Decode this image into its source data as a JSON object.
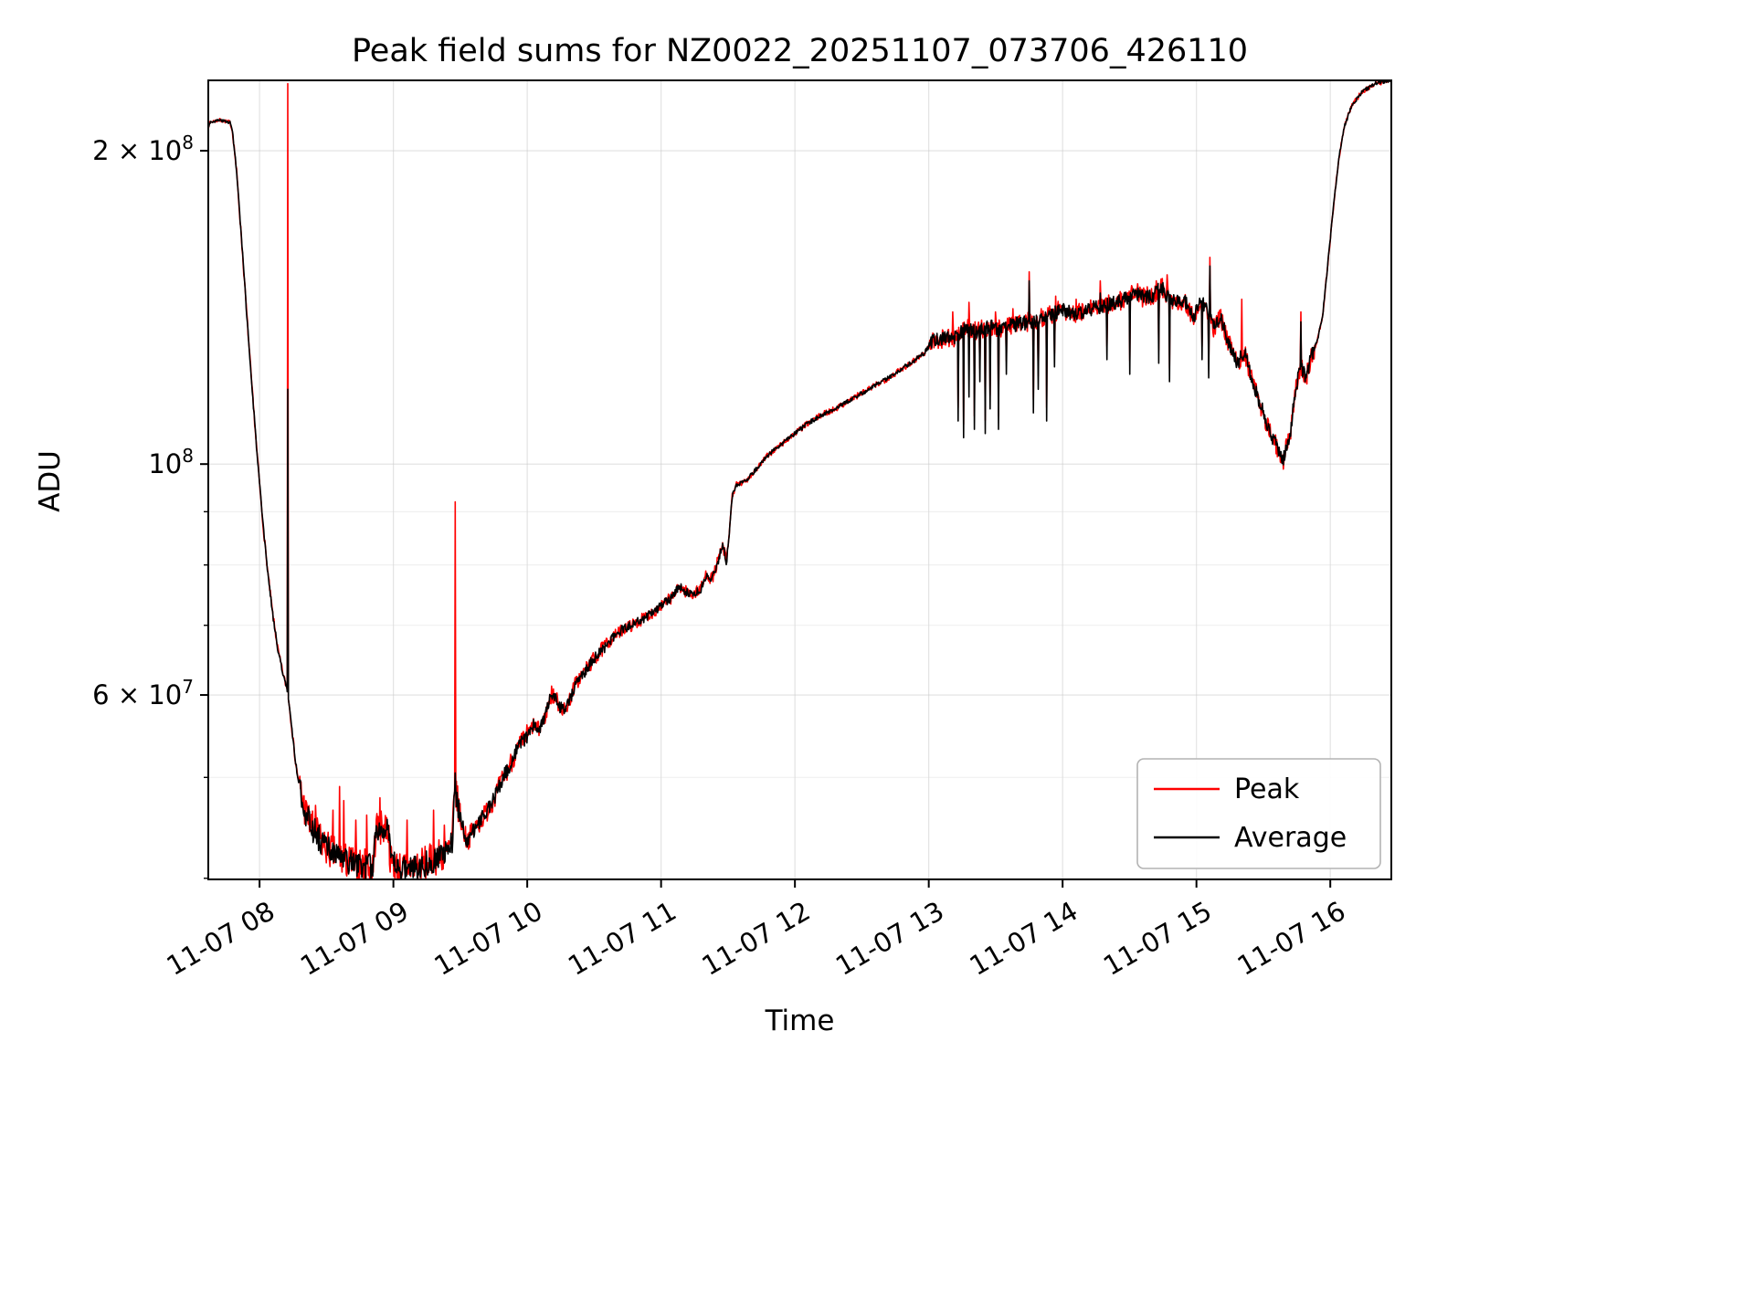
{
  "chart_data": {
    "type": "line",
    "title": "Peak field sums for NZ0022_20251107_073706_426110",
    "xlabel": "Time",
    "ylabel": "ADU",
    "yscale": "log",
    "grid": true,
    "x_range_hours": [
      7.617,
      16.456
    ],
    "ylim": [
      39900000,
      233700000
    ],
    "x_ticks": [
      {
        "hour": 8,
        "label": "11-07 08"
      },
      {
        "hour": 9,
        "label": "11-07 09"
      },
      {
        "hour": 10,
        "label": "11-07 10"
      },
      {
        "hour": 11,
        "label": "11-07 11"
      },
      {
        "hour": 12,
        "label": "11-07 12"
      },
      {
        "hour": 13,
        "label": "11-07 13"
      },
      {
        "hour": 14,
        "label": "11-07 14"
      },
      {
        "hour": 15,
        "label": "11-07 15"
      },
      {
        "hour": 16,
        "label": "11-07 16"
      }
    ],
    "y_ticks": [
      {
        "value": 200000000.0,
        "label": "2 × 10^8"
      },
      {
        "value": 100000000.0,
        "label": "10^8"
      },
      {
        "value": 60000000.0,
        "label": "6 × 10^7"
      }
    ],
    "y_minor_grid": [
      40000000.0,
      50000000.0,
      70000000.0,
      80000000.0,
      90000000.0
    ],
    "legend": {
      "position": "lower right",
      "entries": [
        {
          "label": "Peak",
          "color": "#ff0000"
        },
        {
          "label": "Average",
          "color": "#000000"
        }
      ]
    },
    "backbone": [
      [
        7.617,
        211000000.0
      ],
      [
        7.63,
        213000000.0
      ],
      [
        7.66,
        213500000.0
      ],
      [
        7.7,
        214000000.0
      ],
      [
        7.74,
        213500000.0
      ],
      [
        7.78,
        213000000.0
      ],
      [
        7.8,
        208000000.0
      ],
      [
        7.83,
        190000000.0
      ],
      [
        7.86,
        168000000.0
      ],
      [
        7.9,
        142000000.0
      ],
      [
        7.94,
        120000000.0
      ],
      [
        7.98,
        103000000.0
      ],
      [
        8.02,
        89000000.0
      ],
      [
        8.06,
        79000000.0
      ],
      [
        8.1,
        71500000.0
      ],
      [
        8.14,
        66000000.0
      ],
      [
        8.18,
        62500000.0
      ],
      [
        8.21,
        60500000.0
      ],
      [
        8.24,
        56000000.0
      ],
      [
        8.27,
        51500000.0
      ],
      [
        8.3,
        49000000.0
      ],
      [
        8.34,
        46500000.0
      ],
      [
        8.38,
        45000000.0
      ],
      [
        8.44,
        43800000.0
      ],
      [
        8.5,
        42800000.0
      ],
      [
        8.58,
        42000000.0
      ],
      [
        8.66,
        41500000.0
      ],
      [
        8.74,
        41200000.0
      ],
      [
        8.82,
        41000000.0
      ],
      [
        8.85,
        41200000.0
      ],
      [
        8.87,
        44800000.0
      ],
      [
        8.9,
        44500000.0
      ],
      [
        8.93,
        45000000.0
      ],
      [
        8.96,
        44800000.0
      ],
      [
        8.98,
        41500000.0
      ],
      [
        9.05,
        40800000.0
      ],
      [
        9.12,
        41000000.0
      ],
      [
        9.2,
        41200000.0
      ],
      [
        9.28,
        41500000.0
      ],
      [
        9.32,
        42000000.0
      ],
      [
        9.4,
        42200000.0
      ],
      [
        9.44,
        43500000.0
      ],
      [
        9.455,
        48000000.0
      ],
      [
        9.48,
        47500000.0
      ],
      [
        9.51,
        45000000.0
      ],
      [
        9.55,
        43500000.0
      ],
      [
        9.6,
        44500000.0
      ],
      [
        9.68,
        46000000.0
      ],
      [
        9.76,
        48000000.0
      ],
      [
        9.84,
        50500000.0
      ],
      [
        9.92,
        53000000.0
      ],
      [
        10.0,
        55000000.0
      ],
      [
        10.05,
        56200000.0
      ],
      [
        10.09,
        55500000.0
      ],
      [
        10.13,
        57000000.0
      ],
      [
        10.17,
        59500000.0
      ],
      [
        10.21,
        60000000.0
      ],
      [
        10.24,
        58500000.0
      ],
      [
        10.28,
        58000000.0
      ],
      [
        10.32,
        59500000.0
      ],
      [
        10.36,
        61500000.0
      ],
      [
        10.42,
        63000000.0
      ],
      [
        10.5,
        65000000.0
      ],
      [
        10.58,
        66800000.0
      ],
      [
        10.66,
        68500000.0
      ],
      [
        10.72,
        69500000.0
      ],
      [
        10.8,
        70200000.0
      ],
      [
        10.9,
        71500000.0
      ],
      [
        11.0,
        73000000.0
      ],
      [
        11.08,
        74500000.0
      ],
      [
        11.14,
        76200000.0
      ],
      [
        11.18,
        75500000.0
      ],
      [
        11.24,
        75000000.0
      ],
      [
        11.3,
        76000000.0
      ],
      [
        11.34,
        78500000.0
      ],
      [
        11.38,
        77500000.0
      ],
      [
        11.43,
        81000000.0
      ],
      [
        11.46,
        83500000.0
      ],
      [
        11.49,
        80500000.0
      ],
      [
        11.51,
        86000000.0
      ],
      [
        11.53,
        93000000.0
      ],
      [
        11.56,
        95500000.0
      ],
      [
        11.62,
        96000000.0
      ],
      [
        11.7,
        98500000.0
      ],
      [
        11.8,
        102000000.0
      ],
      [
        11.9,
        104500000.0
      ],
      [
        12.0,
        107000000.0
      ],
      [
        12.1,
        109500000.0
      ],
      [
        12.2,
        111500000.0
      ],
      [
        12.3,
        113000000.0
      ],
      [
        12.4,
        115000000.0
      ],
      [
        12.5,
        117000000.0
      ],
      [
        12.6,
        119000000.0
      ],
      [
        12.7,
        121000000.0
      ],
      [
        12.8,
        123500000.0
      ],
      [
        12.9,
        126000000.0
      ],
      [
        12.97,
        128000000.0
      ],
      [
        13.02,
        131000000.0
      ],
      [
        13.1,
        132000000.0
      ],
      [
        13.2,
        132500000.0
      ],
      [
        13.28,
        135000000.0
      ],
      [
        13.36,
        134000000.0
      ],
      [
        13.44,
        135500000.0
      ],
      [
        13.52,
        135000000.0
      ],
      [
        13.6,
        136000000.0
      ],
      [
        13.7,
        136500000.0
      ],
      [
        13.8,
        137500000.0
      ],
      [
        13.9,
        139000000.0
      ],
      [
        14.0,
        141000000.0
      ],
      [
        14.08,
        139500000.0
      ],
      [
        14.16,
        140000000.0
      ],
      [
        14.24,
        141500000.0
      ],
      [
        14.32,
        142000000.0
      ],
      [
        14.4,
        143000000.0
      ],
      [
        14.48,
        144500000.0
      ],
      [
        14.54,
        146000000.0
      ],
      [
        14.6,
        144500000.0
      ],
      [
        14.68,
        145500000.0
      ],
      [
        14.74,
        148000000.0
      ],
      [
        14.8,
        144000000.0
      ],
      [
        14.86,
        143500000.0
      ],
      [
        14.92,
        143000000.0
      ],
      [
        14.98,
        138000000.0
      ],
      [
        15.03,
        144000000.0
      ],
      [
        15.08,
        140000000.0
      ],
      [
        15.13,
        135000000.0
      ],
      [
        15.18,
        138000000.0
      ],
      [
        15.24,
        131000000.0
      ],
      [
        15.3,
        125000000.0
      ],
      [
        15.36,
        128000000.0
      ],
      [
        15.42,
        120000000.0
      ],
      [
        15.48,
        114000000.0
      ],
      [
        15.54,
        108000000.0
      ],
      [
        15.6,
        104000000.0
      ],
      [
        15.65,
        101000000.0
      ],
      [
        15.7,
        107000000.0
      ],
      [
        15.74,
        118000000.0
      ],
      [
        15.78,
        124000000.0
      ],
      [
        15.82,
        121000000.0
      ],
      [
        15.86,
        127000000.0
      ],
      [
        15.9,
        131000000.0
      ],
      [
        15.94,
        138000000.0
      ],
      [
        15.98,
        155000000.0
      ],
      [
        16.02,
        175000000.0
      ],
      [
        16.06,
        195000000.0
      ],
      [
        16.1,
        210000000.0
      ],
      [
        16.16,
        221000000.0
      ],
      [
        16.24,
        228000000.0
      ],
      [
        16.34,
        232000000.0
      ],
      [
        16.456,
        234000000.0
      ]
    ],
    "noise_regions": [
      [
        7.617,
        7.8,
        0.003
      ],
      [
        7.8,
        8.3,
        0.006
      ],
      [
        8.3,
        9.5,
        0.03
      ],
      [
        9.5,
        10.0,
        0.018
      ],
      [
        10.0,
        10.6,
        0.013
      ],
      [
        10.6,
        11.5,
        0.01
      ],
      [
        11.5,
        13.0,
        0.005
      ],
      [
        13.0,
        15.88,
        0.016
      ],
      [
        15.88,
        16.456,
        0.004
      ]
    ],
    "downspikes": [
      [
        13.22,
        110000000.0
      ],
      [
        13.26,
        106000000.0
      ],
      [
        13.3,
        116000000.0
      ],
      [
        13.34,
        108000000.0
      ],
      [
        13.38,
        120000000.0
      ],
      [
        13.42,
        107000000.0
      ],
      [
        13.46,
        113000000.0
      ],
      [
        13.52,
        108000000.0
      ],
      [
        13.58,
        122000000.0
      ],
      [
        13.78,
        112000000.0
      ],
      [
        13.82,
        118000000.0
      ],
      [
        13.88,
        110000000.0
      ],
      [
        13.94,
        124000000.0
      ],
      [
        14.28,
        113000000.0
      ],
      [
        14.33,
        126000000.0
      ],
      [
        14.5,
        122000000.0
      ],
      [
        14.72,
        125000000.0
      ],
      [
        14.8,
        120000000.0
      ],
      [
        15.04,
        126000000.0
      ],
      [
        15.09,
        121000000.0
      ]
    ],
    "series": [
      {
        "name": "Peak",
        "color": "#ff0000",
        "seed": 7,
        "noise_scale": 1.35,
        "spikes": [
          [
            8.21,
            232000000.0
          ],
          [
            9.46,
            92000000.0
          ],
          [
            8.42,
            47000000.0
          ],
          [
            8.55,
            46500000.0
          ],
          [
            8.6,
            49000000.0
          ],
          [
            8.63,
            47500000.0
          ],
          [
            8.72,
            45500000.0
          ],
          [
            8.8,
            46000000.0
          ],
          [
            8.9,
            47800000.0
          ],
          [
            9.1,
            45500000.0
          ],
          [
            9.3,
            46500000.0
          ],
          [
            9.38,
            45000000.0
          ],
          [
            10.18,
            61200000.0
          ],
          [
            13.18,
            140000000.0
          ],
          [
            13.3,
            143000000.0
          ],
          [
            13.5,
            140000000.0
          ],
          [
            13.63,
            141000000.0
          ],
          [
            13.75,
            153000000.0
          ],
          [
            13.95,
            145000000.0
          ],
          [
            14.1,
            144000000.0
          ],
          [
            14.28,
            150000000.0
          ],
          [
            14.56,
            149000000.0
          ],
          [
            14.7,
            150000000.0
          ],
          [
            14.78,
            152000000.0
          ],
          [
            15.1,
            158000000.0
          ],
          [
            15.34,
            144000000.0
          ],
          [
            15.78,
            140000000.0
          ]
        ]
      },
      {
        "name": "Average",
        "color": "#000000",
        "seed": 3,
        "noise_scale": 1.0,
        "spikes": [
          [
            8.21,
            118000000.0
          ],
          [
            9.46,
            50500000.0
          ],
          [
            13.75,
            150000000.0
          ],
          [
            14.28,
            146000000.0
          ],
          [
            15.1,
            155000000.0
          ],
          [
            15.78,
            137000000.0
          ]
        ]
      }
    ]
  }
}
